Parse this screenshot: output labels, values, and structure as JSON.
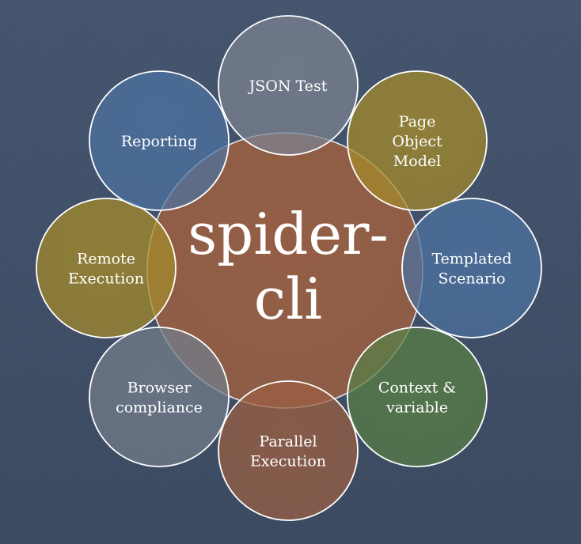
{
  "diagram": {
    "center": {
      "lines": [
        "spider-",
        "cli"
      ],
      "color": "#9a5f42"
    },
    "nodes": [
      {
        "id": "json-test",
        "lines": [
          "JSON Test"
        ],
        "color": "#7a8290"
      },
      {
        "id": "page-object-model",
        "lines": [
          "Page",
          "Object",
          "Model"
        ],
        "color": "#a48a2a"
      },
      {
        "id": "templated-scenario",
        "lines": [
          "Templated",
          "Scenario"
        ],
        "color": "#4c72a0"
      },
      {
        "id": "context-variable",
        "lines": [
          "Context &",
          "variable"
        ],
        "color": "#587e45"
      },
      {
        "id": "parallel-execution",
        "lines": [
          "Parallel",
          "Execution"
        ],
        "color": "#9a5f42"
      },
      {
        "id": "browser-compliance",
        "lines": [
          "Browser",
          "compliance"
        ],
        "color": "#727c8a"
      },
      {
        "id": "remote-execution",
        "lines": [
          "Remote",
          "Execution"
        ],
        "color": "#a48a2a"
      },
      {
        "id": "reporting",
        "lines": [
          "Reporting"
        ],
        "color": "#4c72a0"
      }
    ]
  }
}
